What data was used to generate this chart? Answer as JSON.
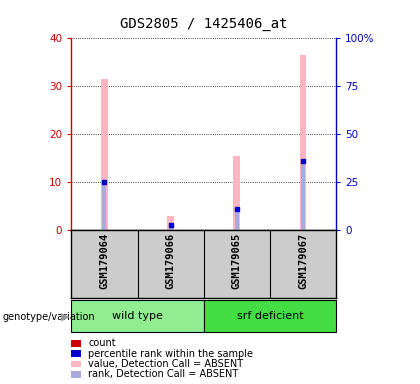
{
  "title": "GDS2805 / 1425406_at",
  "samples": [
    "GSM179064",
    "GSM179066",
    "GSM179065",
    "GSM179067"
  ],
  "pink_bars": [
    31.5,
    3.0,
    15.5,
    36.5
  ],
  "blue_bars": [
    10.0,
    1.2,
    4.5,
    14.5
  ],
  "red_bar": [
    0.15,
    0.0,
    0.15,
    0.15
  ],
  "blue_dot_vals": [
    10.0,
    1.2,
    4.5,
    14.5
  ],
  "ylim_left": [
    0,
    40
  ],
  "ylim_right": [
    0,
    100
  ],
  "yticks_left": [
    0,
    10,
    20,
    30,
    40
  ],
  "yticks_right": [
    0,
    25,
    50,
    75,
    100
  ],
  "ytick_labels_right": [
    "0",
    "25",
    "50",
    "75",
    "100%"
  ],
  "left_axis_color": "#CC0000",
  "right_axis_color": "#0000CC",
  "title_fontsize": 10,
  "legend_items": [
    {
      "label": "count",
      "color": "#CC0000"
    },
    {
      "label": "percentile rank within the sample",
      "color": "#0000CC"
    },
    {
      "label": "value, Detection Call = ABSENT",
      "color": "#FFB6C1"
    },
    {
      "label": "rank, Detection Call = ABSENT",
      "color": "#AAAADD"
    }
  ],
  "bg_color": "#FFFFFF",
  "gray_bg": "#CCCCCC",
  "wt_color": "#90EE90",
  "srf_color": "#44DD44"
}
